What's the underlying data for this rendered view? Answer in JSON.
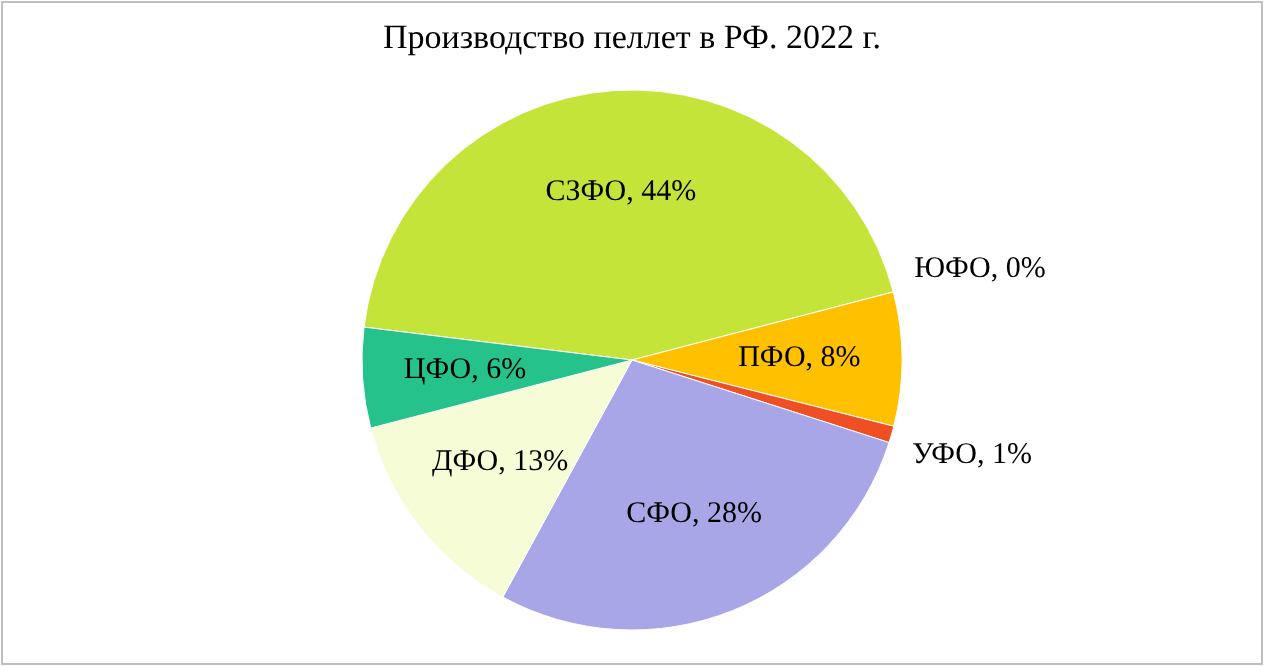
{
  "chart_data": {
    "type": "pie",
    "title": "Производство пеллет в РФ. 2022 г.",
    "categories": [
      "СЗФО, 44%",
      "ЮФО, 0%",
      "ПФО, 8%",
      "УФО, 1%",
      "СФО, 28%",
      "ДФО, 13%",
      "ЦФО, 6%"
    ],
    "values": [
      44,
      0,
      8,
      1,
      28,
      13,
      6
    ],
    "colors": [
      "#c5e43a",
      null,
      "#ffc000",
      "#f04e23",
      "#a9a6e8",
      "#f5fcd6",
      "#26c28c"
    ]
  }
}
